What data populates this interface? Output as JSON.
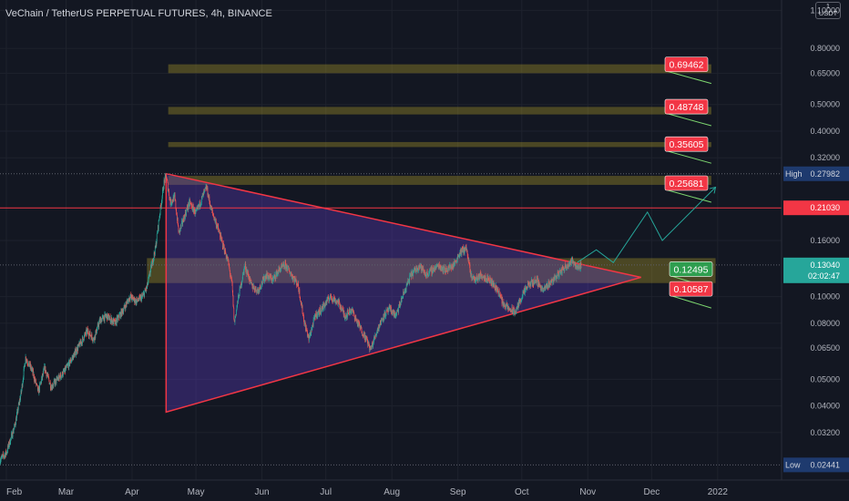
{
  "header": {
    "title": "VeChain / TetherUS PERPETUAL FUTURES, 4h, BINANCE",
    "currency_badge": [
      "1",
      "USDT"
    ]
  },
  "colors": {
    "background": "#131722",
    "text": "#b2b5be",
    "grid": "#1e222d",
    "bull": "#26a69a",
    "bear": "#ef5350",
    "zone_fill": "rgba(180,160,40,0.35)",
    "triangle_fill": "rgba(98,60,200,0.35)",
    "triangle_stroke": "#f23645",
    "resistance_line": "#f23645",
    "projection_path": "#26a69a",
    "target_label": "#f23645",
    "price_label_bg": "#26a69a",
    "high_low_bg": "#1e3a6e"
  },
  "chart_data": {
    "type": "candlestick",
    "title": "VeChain / TetherUS PERPETUAL FUTURES, 4h, BINANCE",
    "y_scale": "log",
    "ylim": [
      0.0215,
      1.2
    ],
    "xlim": [
      "2021-01-29",
      "2022-01-31"
    ],
    "x_ticks": [
      {
        "label": "Feb",
        "date": "2021-02-01"
      },
      {
        "label": "Mar",
        "date": "2021-03-01"
      },
      {
        "label": "Apr",
        "date": "2021-04-01"
      },
      {
        "label": "May",
        "date": "2021-05-01"
      },
      {
        "label": "Jun",
        "date": "2021-06-01"
      },
      {
        "label": "Jul",
        "date": "2021-07-01"
      },
      {
        "label": "Aug",
        "date": "2021-08-01"
      },
      {
        "label": "Sep",
        "date": "2021-09-01"
      },
      {
        "label": "Oct",
        "date": "2021-10-01"
      },
      {
        "label": "Nov",
        "date": "2021-11-01"
      },
      {
        "label": "Dec",
        "date": "2021-12-01"
      },
      {
        "label": "2022",
        "date": "2022-01-01"
      }
    ],
    "y_ticks": [
      {
        "label": "1.10000",
        "value": 1.1
      },
      {
        "label": "0.80000",
        "value": 0.8
      },
      {
        "label": "0.65000",
        "value": 0.65
      },
      {
        "label": "0.50000",
        "value": 0.5
      },
      {
        "label": "0.40000",
        "value": 0.4
      },
      {
        "label": "0.32000",
        "value": 0.32
      },
      {
        "label": "0.16000",
        "value": 0.16
      },
      {
        "label": "0.10000",
        "value": 0.1
      },
      {
        "label": "0.08000",
        "value": 0.08
      },
      {
        "label": "0.06500",
        "value": 0.065
      },
      {
        "label": "0.05000",
        "value": 0.05
      },
      {
        "label": "0.04000",
        "value": 0.04
      },
      {
        "label": "0.03200",
        "value": 0.032
      }
    ],
    "close_path": [
      [
        "2021-01-29",
        0.0255
      ],
      [
        "2021-02-01",
        0.027
      ],
      [
        "2021-02-05",
        0.034
      ],
      [
        "2021-02-08",
        0.045
      ],
      [
        "2021-02-10",
        0.06
      ],
      [
        "2021-02-13",
        0.054
      ],
      [
        "2021-02-16",
        0.045
      ],
      [
        "2021-02-19",
        0.055
      ],
      [
        "2021-02-22",
        0.047
      ],
      [
        "2021-02-25",
        0.05
      ],
      [
        "2021-02-28",
        0.053
      ],
      [
        "2021-03-03",
        0.058
      ],
      [
        "2021-03-07",
        0.066
      ],
      [
        "2021-03-11",
        0.075
      ],
      [
        "2021-03-14",
        0.07
      ],
      [
        "2021-03-17",
        0.082
      ],
      [
        "2021-03-20",
        0.085
      ],
      [
        "2021-03-24",
        0.08
      ],
      [
        "2021-03-28",
        0.09
      ],
      [
        "2021-03-31",
        0.1
      ],
      [
        "2021-04-03",
        0.096
      ],
      [
        "2021-04-06",
        0.1
      ],
      [
        "2021-04-08",
        0.108
      ],
      [
        "2021-04-10",
        0.128
      ],
      [
        "2021-04-12",
        0.15
      ],
      [
        "2021-04-14",
        0.2
      ],
      [
        "2021-04-16",
        0.26
      ],
      [
        "2021-04-17",
        0.275
      ],
      [
        "2021-04-19",
        0.22
      ],
      [
        "2021-04-21",
        0.23
      ],
      [
        "2021-04-23",
        0.17
      ],
      [
        "2021-04-25",
        0.19
      ],
      [
        "2021-04-28",
        0.22
      ],
      [
        "2021-05-01",
        0.2
      ],
      [
        "2021-05-04",
        0.23
      ],
      [
        "2021-05-06",
        0.25
      ],
      [
        "2021-05-08",
        0.21
      ],
      [
        "2021-05-11",
        0.18
      ],
      [
        "2021-05-13",
        0.16
      ],
      [
        "2021-05-16",
        0.135
      ],
      [
        "2021-05-18",
        0.11
      ],
      [
        "2021-05-19",
        0.08
      ],
      [
        "2021-05-21",
        0.1
      ],
      [
        "2021-05-24",
        0.13
      ],
      [
        "2021-05-27",
        0.11
      ],
      [
        "2021-05-30",
        0.105
      ],
      [
        "2021-06-03",
        0.12
      ],
      [
        "2021-06-06",
        0.115
      ],
      [
        "2021-06-09",
        0.125
      ],
      [
        "2021-06-12",
        0.13
      ],
      [
        "2021-06-15",
        0.12
      ],
      [
        "2021-06-18",
        0.11
      ],
      [
        "2021-06-21",
        0.08
      ],
      [
        "2021-06-23",
        0.07
      ],
      [
        "2021-06-26",
        0.085
      ],
      [
        "2021-06-29",
        0.09
      ],
      [
        "2021-07-03",
        0.1
      ],
      [
        "2021-07-07",
        0.095
      ],
      [
        "2021-07-10",
        0.085
      ],
      [
        "2021-07-13",
        0.09
      ],
      [
        "2021-07-16",
        0.08
      ],
      [
        "2021-07-20",
        0.07
      ],
      [
        "2021-07-22",
        0.064
      ],
      [
        "2021-07-25",
        0.075
      ],
      [
        "2021-07-28",
        0.085
      ],
      [
        "2021-07-31",
        0.09
      ],
      [
        "2021-08-03",
        0.085
      ],
      [
        "2021-08-06",
        0.1
      ],
      [
        "2021-08-10",
        0.12
      ],
      [
        "2021-08-14",
        0.13
      ],
      [
        "2021-08-17",
        0.12
      ],
      [
        "2021-08-20",
        0.125
      ],
      [
        "2021-08-23",
        0.13
      ],
      [
        "2021-08-26",
        0.125
      ],
      [
        "2021-08-30",
        0.13
      ],
      [
        "2021-09-02",
        0.145
      ],
      [
        "2021-09-05",
        0.15
      ],
      [
        "2021-09-07",
        0.12
      ],
      [
        "2021-09-09",
        0.115
      ],
      [
        "2021-09-12",
        0.12
      ],
      [
        "2021-09-16",
        0.115
      ],
      [
        "2021-09-20",
        0.105
      ],
      [
        "2021-09-22",
        0.095
      ],
      [
        "2021-09-25",
        0.09
      ],
      [
        "2021-09-28",
        0.088
      ],
      [
        "2021-10-01",
        0.1
      ],
      [
        "2021-10-04",
        0.11
      ],
      [
        "2021-10-08",
        0.115
      ],
      [
        "2021-10-11",
        0.105
      ],
      [
        "2021-10-14",
        0.112
      ],
      [
        "2021-10-17",
        0.118
      ],
      [
        "2021-10-20",
        0.125
      ],
      [
        "2021-10-22",
        0.13
      ],
      [
        "2021-10-25",
        0.135
      ],
      [
        "2021-10-27",
        0.128
      ],
      [
        "2021-10-29",
        0.13
      ]
    ],
    "last_price": 0.1304,
    "high": 0.27982,
    "low": 0.02441,
    "resistance_line": 0.2103,
    "supply_zones": [
      {
        "from": 0.65,
        "to": 0.7,
        "target_label": "0.69462",
        "target_value": 0.69462
      },
      {
        "from": 0.46,
        "to": 0.49,
        "target_label": "0.48748",
        "target_value": 0.48748
      },
      {
        "from": 0.35,
        "to": 0.365,
        "target_label": "0.35605",
        "target_value": 0.35605
      },
      {
        "from": 0.255,
        "to": 0.275,
        "target_label": "0.25681",
        "target_value": 0.25681
      }
    ],
    "demand_zone": {
      "from": 0.112,
      "to": 0.138,
      "upper_label": "0.12495",
      "upper_value": 0.12495,
      "lower_label": "0.10587",
      "lower_value": 0.10587
    },
    "triangle": [
      [
        "2021-04-17",
        0.28
      ],
      [
        "2021-11-26",
        0.1175
      ],
      [
        "2021-04-17",
        0.038
      ]
    ],
    "projection_path": [
      [
        "2021-10-27",
        0.133
      ],
      [
        "2021-11-05",
        0.148
      ],
      [
        "2021-11-13",
        0.133
      ],
      [
        "2021-11-29",
        0.203
      ],
      [
        "2021-12-06",
        0.16
      ],
      [
        "2021-12-31",
        0.25
      ]
    ],
    "axis_labels": {
      "last_price": "0.13040",
      "countdown": "02:02:47",
      "resistance": "0.21030",
      "high_word": "High",
      "high_value": "0.27982",
      "low_word": "Low",
      "low_value": "0.02441"
    }
  }
}
